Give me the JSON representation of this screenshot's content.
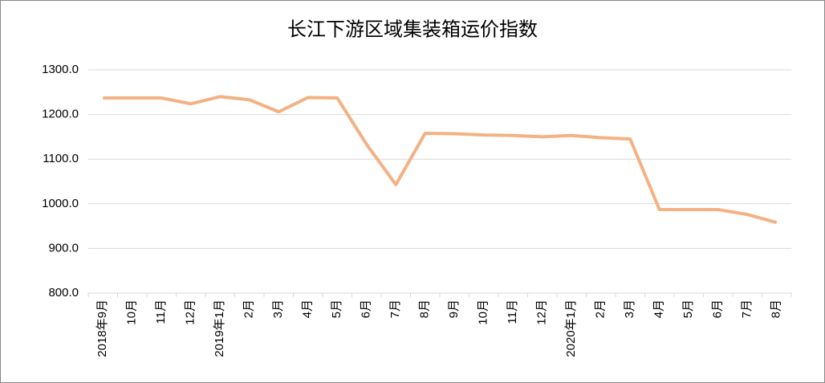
{
  "chart_data": {
    "type": "line",
    "title": "长江下游区域集装箱运价指数",
    "categories": [
      "2018年9月",
      "10月",
      "11月",
      "12月",
      "2019年1月",
      "2月",
      "3月",
      "4月",
      "5月",
      "6月",
      "7月",
      "8月",
      "9月",
      "10月",
      "11月",
      "12月",
      "2020年1月",
      "2月",
      "3月",
      "4月",
      "5月",
      "6月",
      "7月",
      "8月"
    ],
    "values": [
      1237,
      1237,
      1237,
      1224,
      1240,
      1233,
      1206,
      1238,
      1237,
      1133,
      1043,
      1158,
      1157,
      1154,
      1153,
      1150,
      1153,
      1148,
      1145,
      987,
      987,
      987,
      976,
      958
    ],
    "color": "#f4b183",
    "ylim": [
      800,
      1300
    ],
    "yticks": [
      {
        "value": 800,
        "label": "800.0"
      },
      {
        "value": 900,
        "label": "900.0"
      },
      {
        "value": 1000,
        "label": "1000.0"
      },
      {
        "value": 1100,
        "label": "1100.0"
      },
      {
        "value": 1200,
        "label": "1200.0"
      },
      {
        "value": 1300,
        "label": "1300.0"
      }
    ],
    "grid": true
  }
}
